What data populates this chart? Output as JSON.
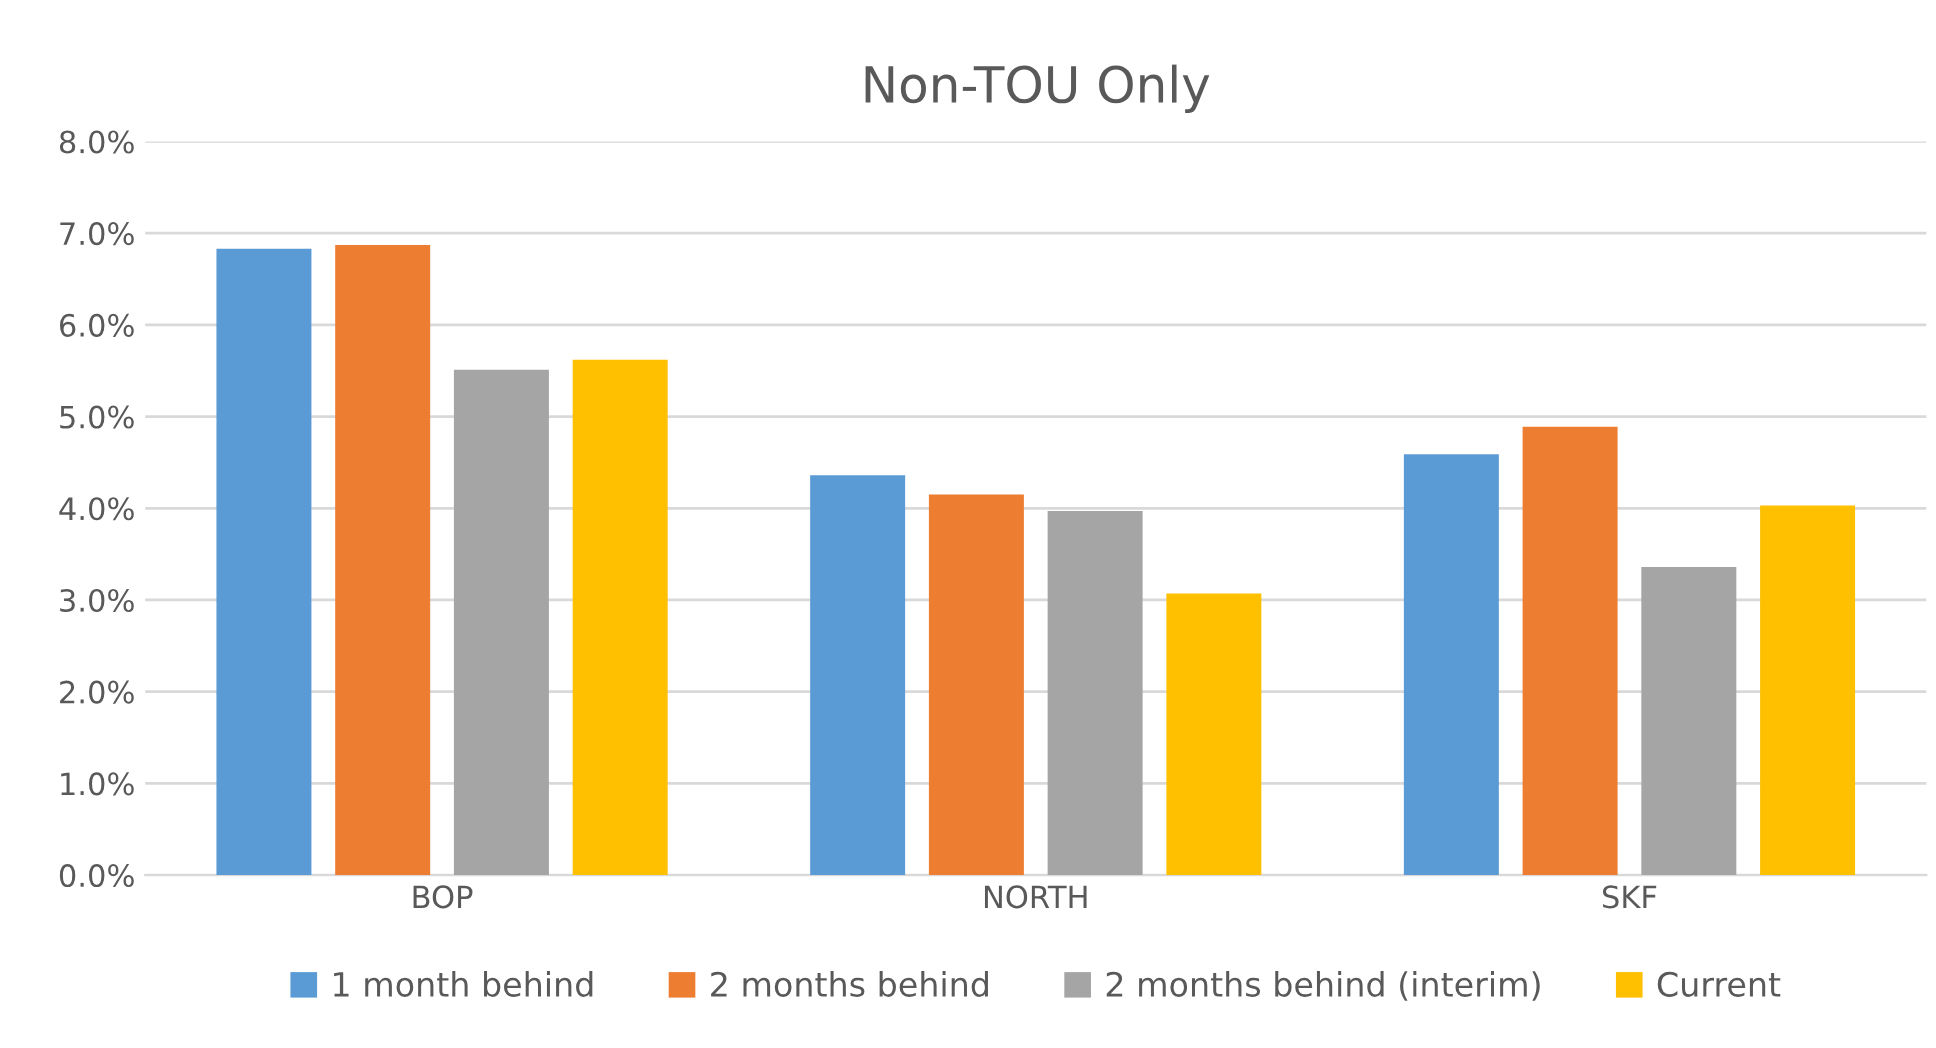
{
  "chart_data": {
    "type": "bar",
    "title": "Non-TOU Only",
    "categories": [
      "BOP",
      "NORTH",
      "SKF"
    ],
    "series": [
      {
        "name": "1 month behind",
        "color": "#5b9bd5",
        "values": [
          6.83,
          4.36,
          4.59
        ]
      },
      {
        "name": "2 months behind",
        "color": "#ed7d31",
        "values": [
          6.87,
          4.15,
          4.89
        ]
      },
      {
        "name": "2 months behind (interim)",
        "color": "#a5a5a5",
        "values": [
          5.51,
          3.97,
          3.36
        ]
      },
      {
        "name": "Current",
        "color": "#ffc000",
        "values": [
          5.62,
          3.07,
          4.03
        ]
      }
    ],
    "ylim": [
      0,
      8
    ],
    "yticks": [
      {
        "value": 0,
        "label": "0.0%"
      },
      {
        "value": 1,
        "label": "1.0%"
      },
      {
        "value": 2,
        "label": "2.0%"
      },
      {
        "value": 3,
        "label": "3.0%"
      },
      {
        "value": 4,
        "label": "4.0%"
      },
      {
        "value": 5,
        "label": "5.0%"
      },
      {
        "value": 6,
        "label": "6.0%"
      },
      {
        "value": 7,
        "label": "7.0%"
      },
      {
        "value": 8,
        "label": "8.0%"
      }
    ],
    "grid": "y",
    "legend": "bottom"
  }
}
